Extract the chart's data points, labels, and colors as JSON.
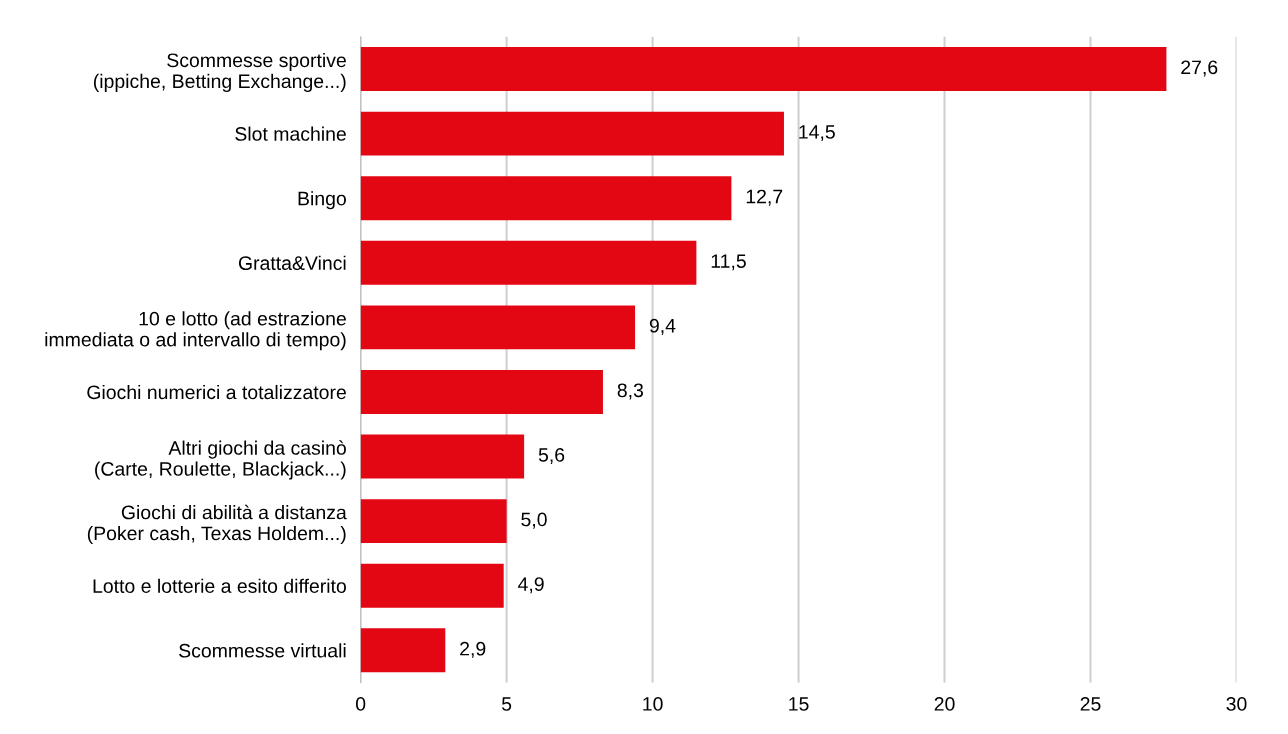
{
  "chart_data": {
    "type": "bar",
    "orientation": "horizontal",
    "categories": [
      "Scommesse sportive\n(ippiche, Betting Exchange...)",
      "Slot machine",
      "Bingo",
      "Gratta&Vinci",
      "10 e lotto (ad estrazione\nimmediata o ad intervallo di tempo)",
      "Giochi numerici a totalizzatore",
      "Altri giochi da casinò\n(Carte, Roulette, Blackjack...)",
      "Giochi di abilità a distanza\n(Poker cash, Texas Holdem...)",
      "Lotto e lotterie a esito differito",
      "Scommesse virtuali"
    ],
    "values": [
      27.6,
      14.5,
      12.7,
      11.5,
      9.4,
      8.3,
      5.6,
      5.0,
      4.9,
      2.9
    ],
    "value_labels": [
      "27,6",
      "14,5",
      "12,7",
      "11,5",
      "9,4",
      "8,3",
      "5,6",
      "5,0",
      "4,9",
      "2,9"
    ],
    "color": "#e30613",
    "xlim": [
      0,
      30
    ],
    "xticks": [
      0,
      5,
      10,
      15,
      20,
      25,
      30
    ],
    "grid": "x"
  }
}
